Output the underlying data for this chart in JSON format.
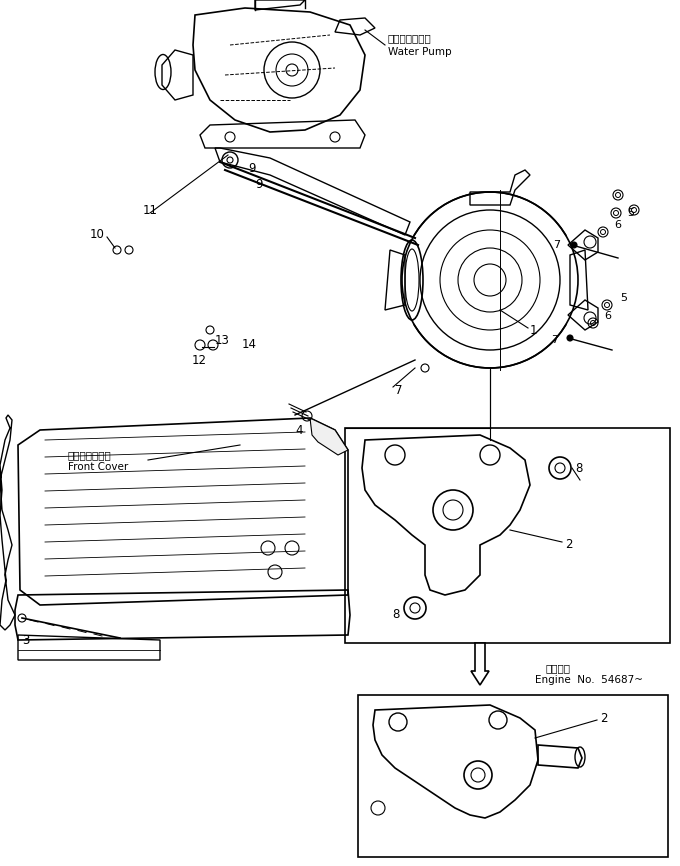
{
  "bg_color": "#ffffff",
  "line_color": "#000000",
  "fig_width": 6.8,
  "fig_height": 8.66,
  "dpi": 100,
  "labels": {
    "water_pump_jp": "ウォータポンプ",
    "water_pump_en": "Water Pump",
    "front_cover_jp": "フロントカバー",
    "front_cover_en": "Front Cover",
    "engine_no_jp": "適用号機",
    "engine_no_en": "Engine  No.  54687~"
  }
}
